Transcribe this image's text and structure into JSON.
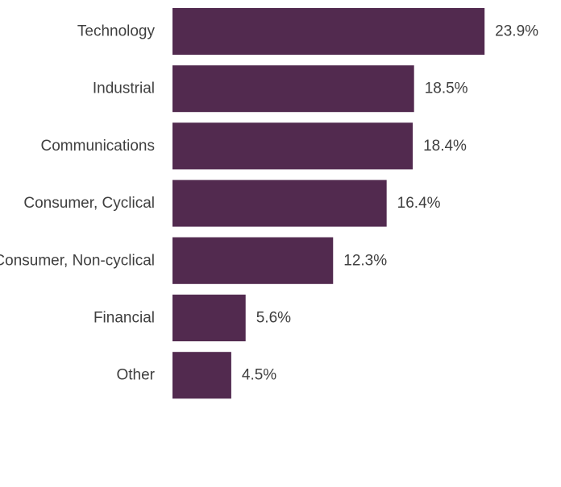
{
  "chart_data": {
    "type": "bar",
    "orientation": "horizontal",
    "categories": [
      "Technology",
      "Industrial",
      "Communications",
      "Consumer, Cyclical",
      "Consumer, Non-cyclical",
      "Financial",
      "Other"
    ],
    "values": [
      23.9,
      18.5,
      18.4,
      16.4,
      12.3,
      5.6,
      4.5
    ],
    "value_labels": [
      "23.9%",
      "18.5%",
      "18.4%",
      "16.4%",
      "12.3%",
      "5.6%",
      "4.5%"
    ],
    "unit": "%",
    "title": "",
    "xlabel": "",
    "ylabel": "",
    "grid": false,
    "legend": "none",
    "bar_color": "#522a4f"
  }
}
